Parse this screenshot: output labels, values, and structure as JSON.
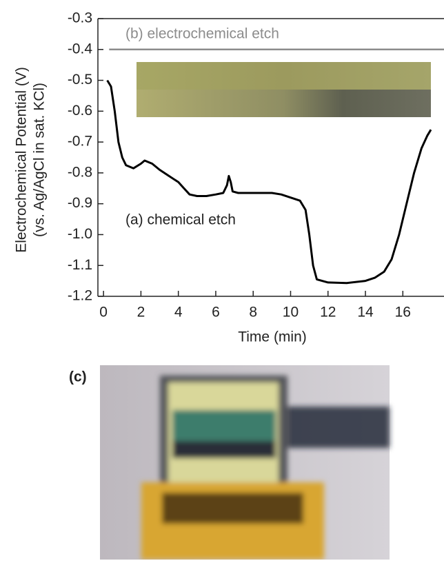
{
  "chart_data": {
    "type": "line",
    "y_title": [
      "Electrochemical Potential (V)",
      "(vs. Ag/AgCl in sat. KCl)"
    ],
    "x_title": "Time (min)",
    "panel_label": "(c)",
    "xlim": [
      -0.3,
      18.2
    ],
    "xticks": [
      0,
      2,
      4,
      6,
      8,
      10,
      12,
      14,
      16
    ],
    "ylim": [
      -1.2,
      -0.3
    ],
    "yticks": [
      -1.2,
      -1.1,
      {
        "value": -1,
        "label": "-1.0"
      },
      -0.9,
      -0.8,
      -0.7,
      -0.6,
      -0.5,
      -0.4,
      -0.3
    ],
    "grid": false,
    "series": [
      {
        "name": "(a) chemical etch",
        "color": "#000000",
        "x": [
          0.2,
          0.4,
          0.6,
          0.8,
          1.0,
          1.2,
          1.6,
          2.0,
          2.2,
          2.6,
          3.0,
          3.5,
          4.0,
          4.3,
          4.6,
          5.0,
          5.5,
          6.0,
          6.4,
          6.6,
          6.7,
          6.8,
          6.9,
          7.2,
          8,
          9,
          9.5,
          10,
          10.5,
          10.8,
          11.0,
          11.2,
          11.4,
          12,
          13,
          14,
          14.5,
          15,
          15.4,
          15.8,
          16.2,
          16.6,
          17.0,
          17.3,
          17.5
        ],
        "values": [
          -0.5,
          -0.52,
          -0.6,
          -0.7,
          -0.75,
          -0.775,
          -0.785,
          -0.77,
          -0.76,
          -0.77,
          -0.79,
          -0.81,
          -0.83,
          -0.85,
          -0.87,
          -0.875,
          -0.875,
          -0.87,
          -0.865,
          -0.84,
          -0.81,
          -0.83,
          -0.86,
          -0.865,
          -0.865,
          -0.865,
          -0.87,
          -0.88,
          -0.89,
          -0.92,
          -1.0,
          -1.1,
          -1.145,
          -1.155,
          -1.157,
          -1.15,
          -1.14,
          -1.12,
          -1.08,
          -1.0,
          -0.9,
          -0.8,
          -0.72,
          -0.68,
          -0.66
        ]
      },
      {
        "name": "(b) electrochemical etch",
        "color": "#8c8c8c",
        "x": [
          0.3,
          18.2
        ],
        "values": [
          -0.4,
          -0.4
        ]
      }
    ]
  }
}
